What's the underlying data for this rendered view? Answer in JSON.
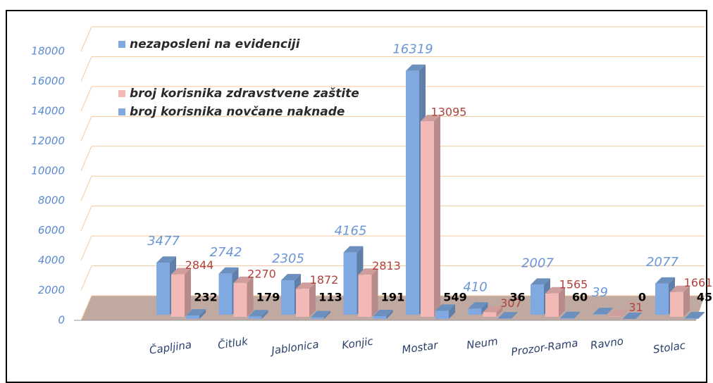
{
  "chart_data": {
    "type": "bar3d",
    "categories": [
      "Čapljina",
      "Čitluk",
      "Jablonica",
      "Konjic",
      "Mostar",
      "Neum",
      "Prozor-Rama",
      "Ravno",
      "Stolac"
    ],
    "series": [
      {
        "name": "nezaposleni na evidenciji",
        "color": "#7fa9e0",
        "values": [
          3477,
          2742,
          2305,
          4165,
          16319,
          410,
          2007,
          39,
          2077
        ]
      },
      {
        "name": "broj korisnika zdravstvene zaštite",
        "color": "#f2b9b7",
        "values": [
          2844,
          2270,
          1872,
          2813,
          13095,
          307,
          1565,
          31,
          1661
        ]
      },
      {
        "name": "broj korisnika novčane naknade",
        "color": "#7fa9e0",
        "values": [
          232,
          179,
          113,
          191,
          549,
          36,
          60,
          0,
          45
        ]
      }
    ],
    "ylim": [
      0,
      18000
    ],
    "yticks": [
      0,
      2000,
      4000,
      6000,
      8000,
      10000,
      12000,
      14000,
      16000,
      18000
    ],
    "grid": true
  }
}
